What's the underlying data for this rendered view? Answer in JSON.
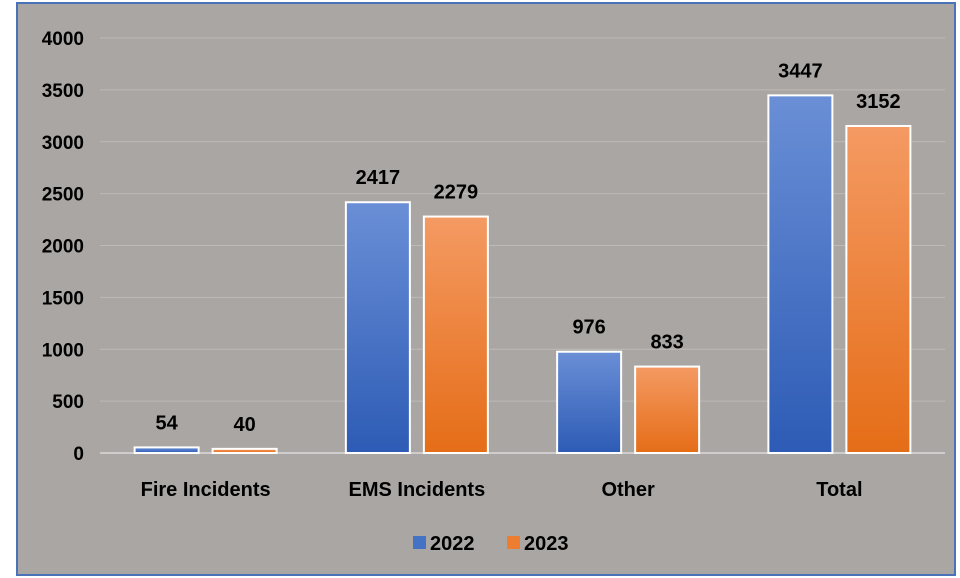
{
  "chart_data": {
    "type": "bar",
    "categories": [
      "Fire Incidents",
      "EMS Incidents",
      "Other",
      "Total"
    ],
    "series": [
      {
        "name": "2022",
        "values": [
          54,
          2417,
          976,
          3447
        ],
        "color": "#4472c4"
      },
      {
        "name": "2023",
        "values": [
          40,
          2279,
          833,
          3152
        ],
        "color": "#ed7d31"
      }
    ],
    "title": "",
    "xlabel": "",
    "ylabel": "",
    "ylim": [
      0,
      4000
    ],
    "yticks": [
      0,
      500,
      1000,
      1500,
      2000,
      2500,
      3000,
      3500,
      4000
    ],
    "grid": true,
    "legend_position": "bottom",
    "data_labels": true
  }
}
